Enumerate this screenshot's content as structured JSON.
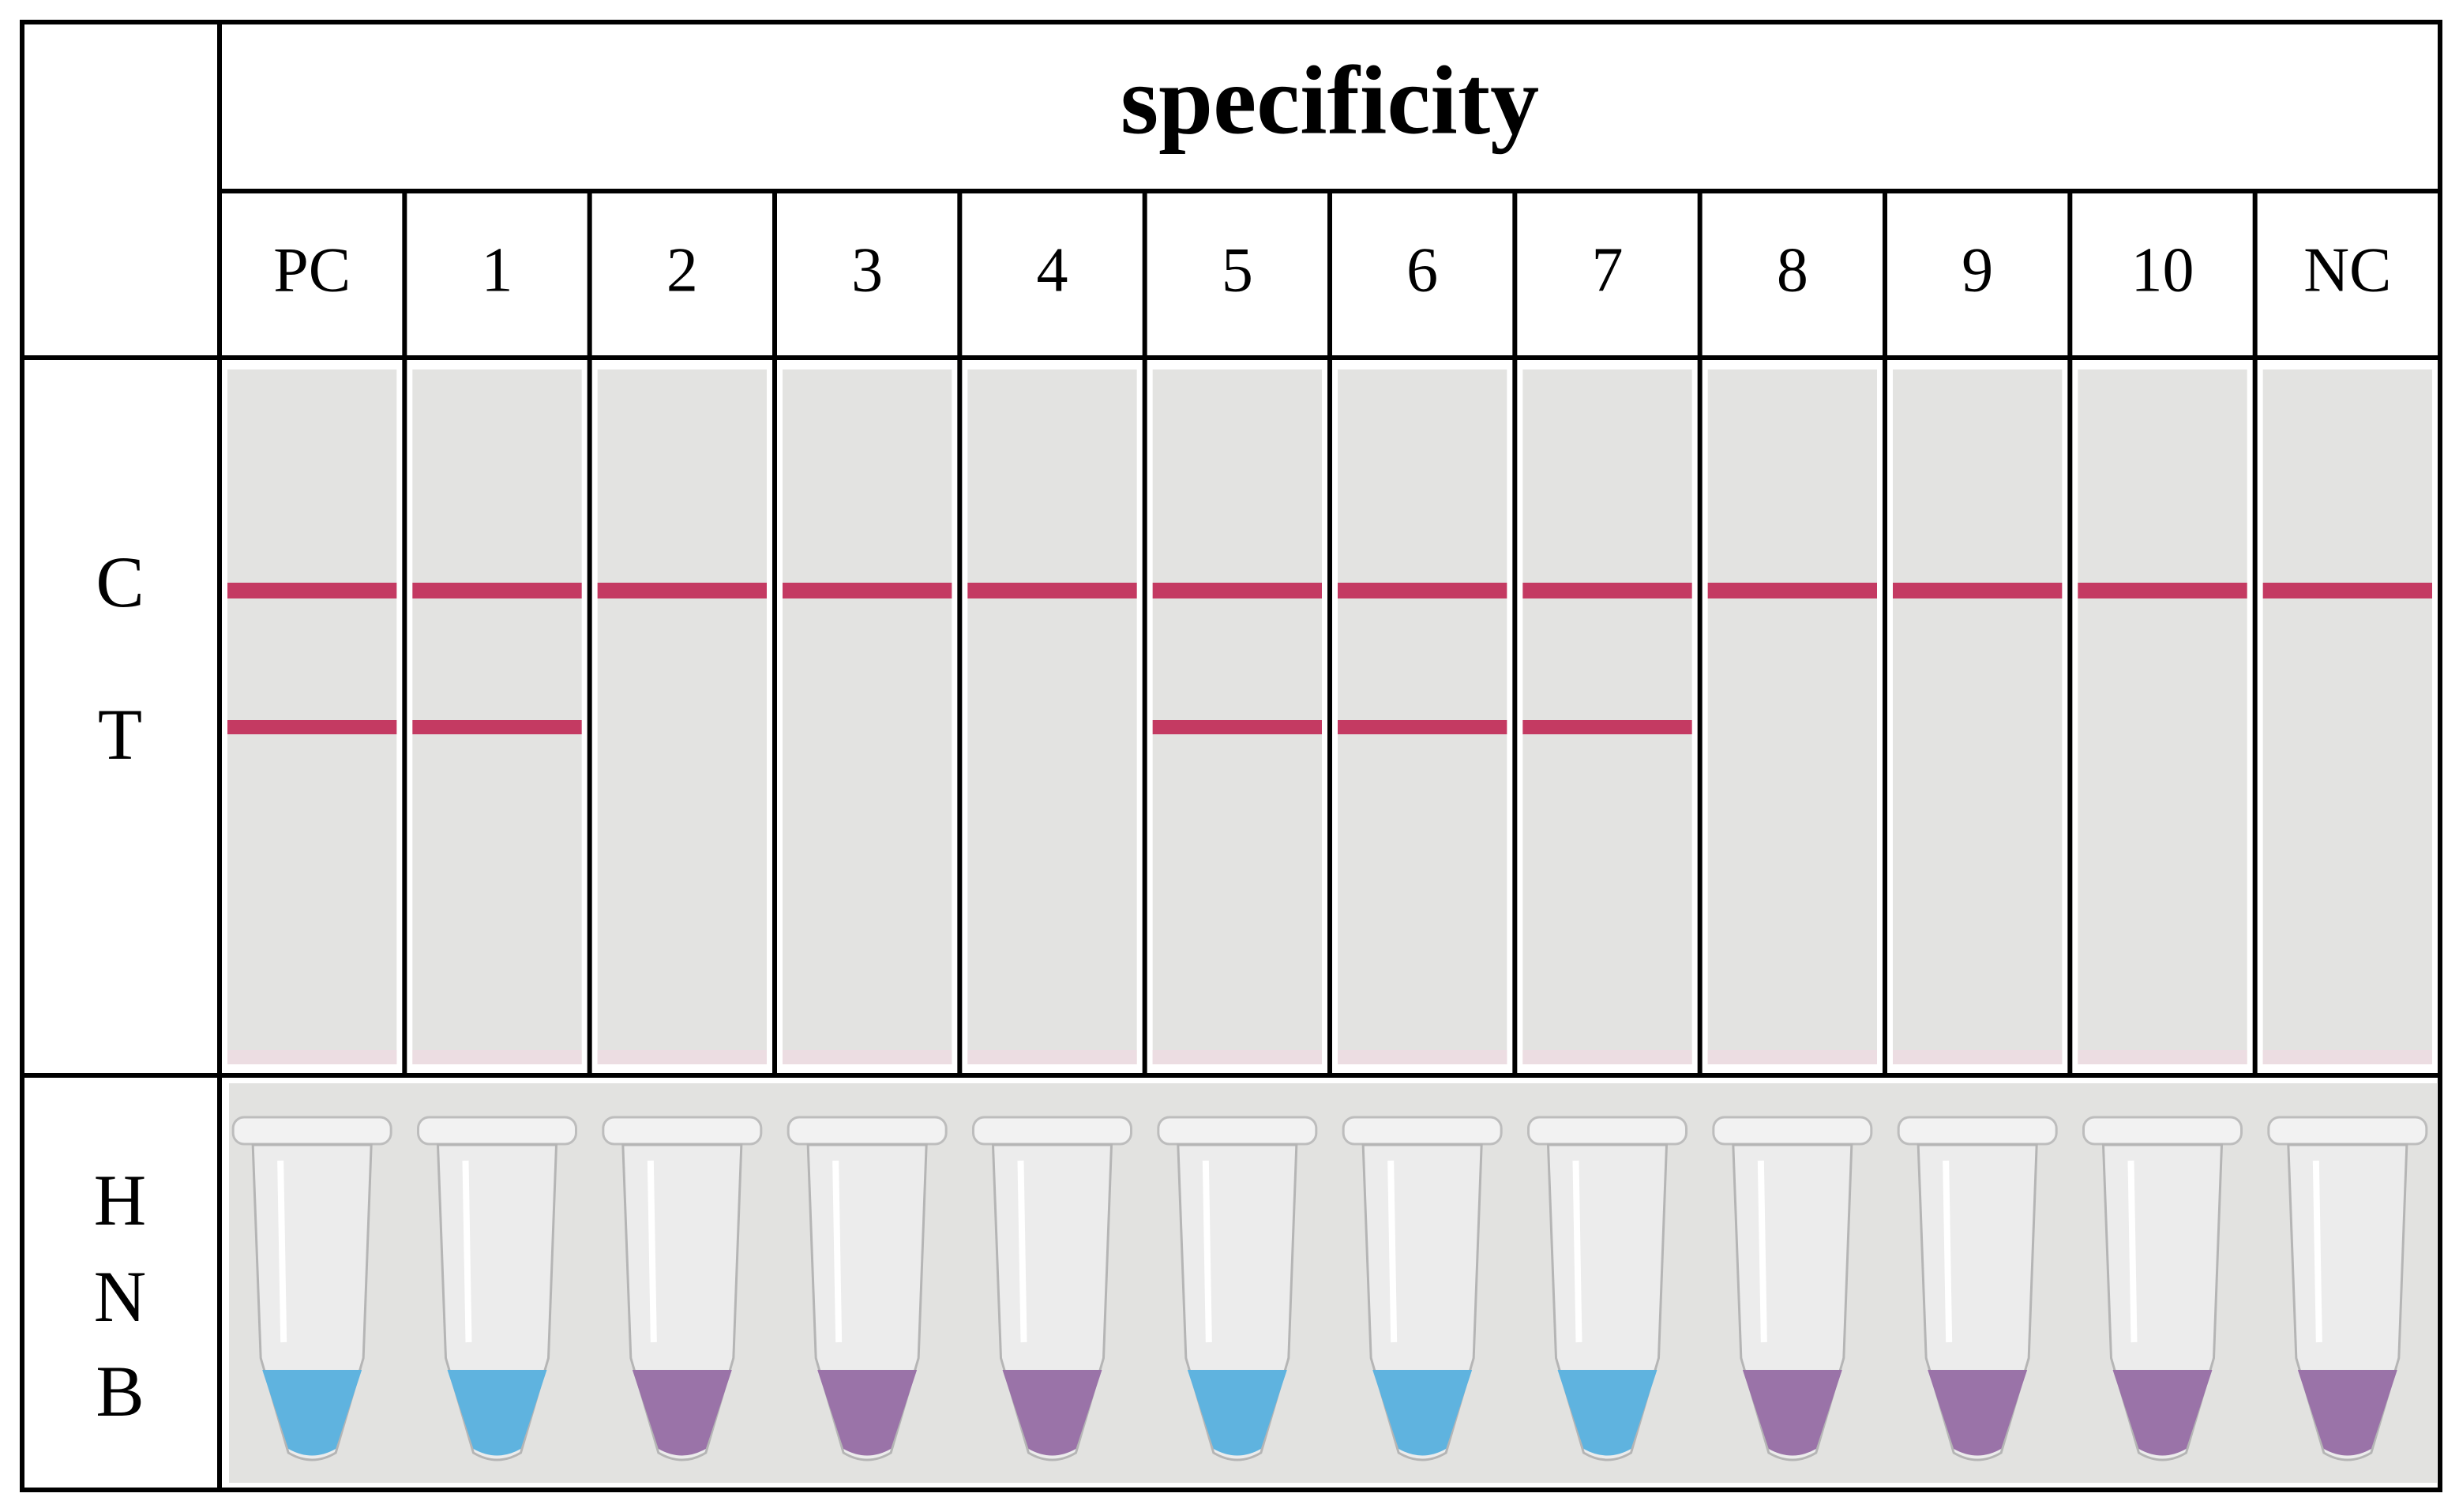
{
  "header": {
    "title": "specificity"
  },
  "columns": [
    "PC",
    "1",
    "2",
    "3",
    "4",
    "5",
    "6",
    "7",
    "8",
    "9",
    "10",
    "NC"
  ],
  "row_labels": {
    "strip": [
      "C",
      "T"
    ],
    "tube": [
      "H",
      "N",
      "B"
    ]
  }
}
